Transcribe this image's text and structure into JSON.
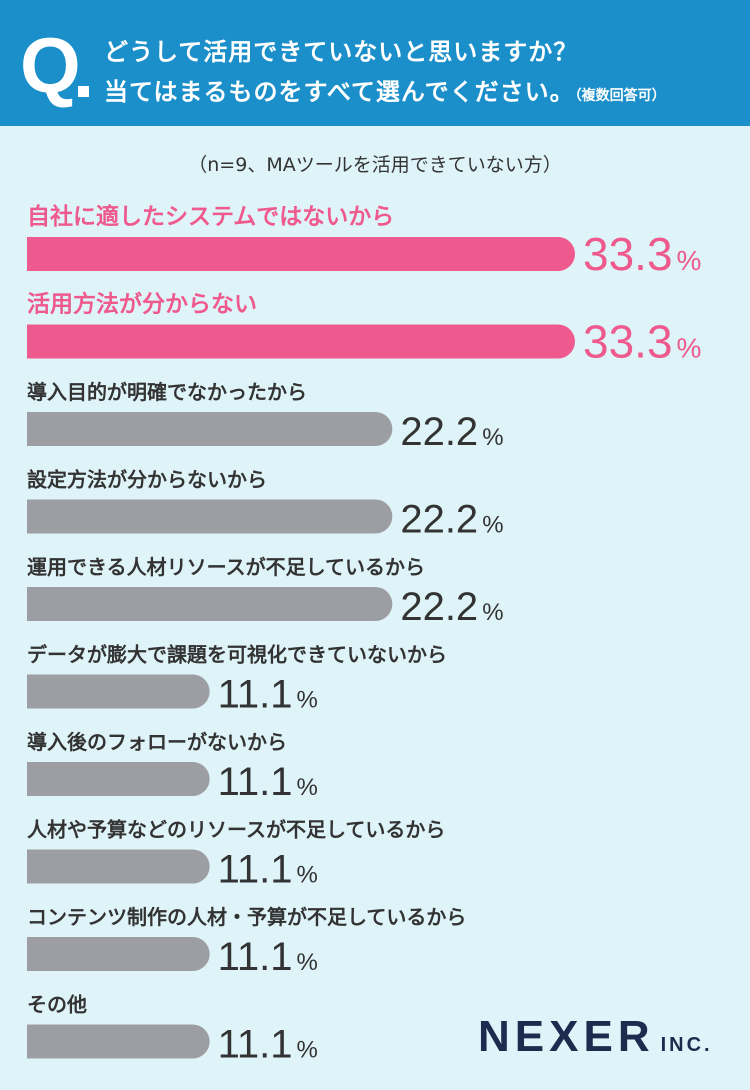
{
  "header": {
    "q_mark": "Q",
    "line1": "どうして活用できていないと思いますか？",
    "line2": "当てはまるものをすべて選んでください。",
    "note": "（複数回答可）"
  },
  "sample_note": "（n=9、MAツールを活用できていない方）",
  "logo": {
    "main": "NEXER",
    "suffix": "INC."
  },
  "colors": {
    "header_bg": "#1b8fca",
    "page_bg": "#dff4f8",
    "highlight": "#ee5a8d",
    "bar_gray": "#9d9ea3",
    "text_dark": "#333333"
  },
  "chart_data": {
    "type": "bar",
    "orientation": "horizontal",
    "title": "",
    "xlabel": "",
    "ylabel": "",
    "unit": "%",
    "xlim": [
      0,
      33.3
    ],
    "categories": [
      "自社に適したシステムではないから",
      "活用方法が分からない",
      "導入目的が明確でなかったから",
      "設定方法が分からないから",
      "運用できる人材リソースが不足しているから",
      "データが膨大で課題を可視化できていないから",
      "導入後のフォローがないから",
      "人材や予算などのリソースが不足しているから",
      "コンテンツ制作の人材・予算が不足しているから",
      "その他"
    ],
    "values": [
      33.3,
      33.3,
      22.2,
      22.2,
      22.2,
      11.1,
      11.1,
      11.1,
      11.1,
      11.1
    ],
    "value_labels": [
      "33.3",
      "33.3",
      "22.2",
      "22.2",
      "22.2",
      "11.1",
      "11.1",
      "11.1",
      "11.1",
      "11.1"
    ],
    "highlight": [
      true,
      true,
      false,
      false,
      false,
      false,
      false,
      false,
      false,
      false
    ]
  }
}
